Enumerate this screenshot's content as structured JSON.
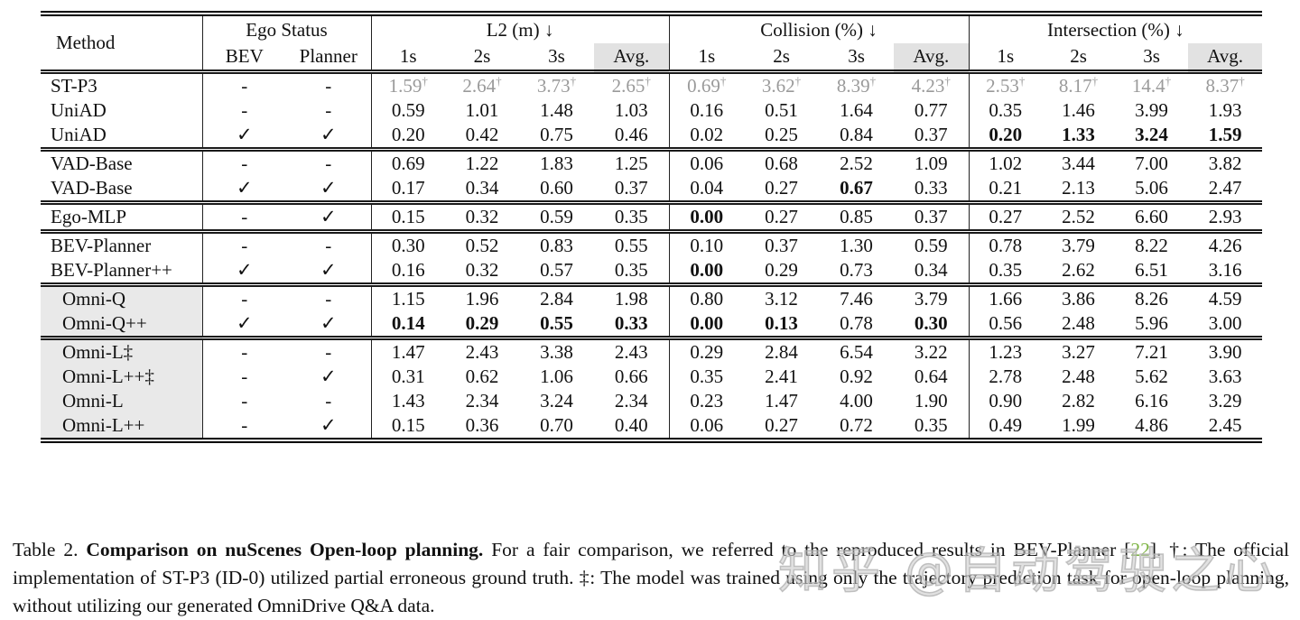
{
  "table": {
    "method_header": "Method",
    "groups": [
      {
        "label": "Ego Status",
        "sub": [
          "BEV",
          "Planner"
        ]
      },
      {
        "label": "L2 (m) ↓",
        "sub": [
          "1s",
          "2s",
          "3s",
          "Avg."
        ]
      },
      {
        "label": "Collision (%) ↓",
        "sub": [
          "1s",
          "2s",
          "3s",
          "Avg."
        ]
      },
      {
        "label": "Intersection (%) ↓",
        "sub": [
          "1s",
          "2s",
          "3s",
          "Avg."
        ]
      }
    ],
    "sections": [
      {
        "shaded": false,
        "rows": [
          {
            "method": "ST-P3",
            "bev": "-",
            "planner": "-",
            "gray": true,
            "dagger": true,
            "values": [
              "1.59",
              "2.64",
              "3.73",
              "2.65",
              "0.69",
              "3.62",
              "8.39",
              "4.23",
              "2.53",
              "8.17",
              "14.4",
              "8.37"
            ],
            "bold": []
          },
          {
            "method": "UniAD",
            "bev": "-",
            "planner": "-",
            "gray": false,
            "dagger": false,
            "values": [
              "0.59",
              "1.01",
              "1.48",
              "1.03",
              "0.16",
              "0.51",
              "1.64",
              "0.77",
              "0.35",
              "1.46",
              "3.99",
              "1.93"
            ],
            "bold": []
          },
          {
            "method": "UniAD",
            "bev": "✓",
            "planner": "✓",
            "gray": false,
            "dagger": false,
            "values": [
              "0.20",
              "0.42",
              "0.75",
              "0.46",
              "0.02",
              "0.25",
              "0.84",
              "0.37",
              "0.20",
              "1.33",
              "3.24",
              "1.59"
            ],
            "bold": [
              8,
              9,
              10,
              11
            ]
          }
        ]
      },
      {
        "shaded": false,
        "rows": [
          {
            "method": "VAD-Base",
            "bev": "-",
            "planner": "-",
            "gray": false,
            "dagger": false,
            "values": [
              "0.69",
              "1.22",
              "1.83",
              "1.25",
              "0.06",
              "0.68",
              "2.52",
              "1.09",
              "1.02",
              "3.44",
              "7.00",
              "3.82"
            ],
            "bold": []
          },
          {
            "method": "VAD-Base",
            "bev": "✓",
            "planner": "✓",
            "gray": false,
            "dagger": false,
            "values": [
              "0.17",
              "0.34",
              "0.60",
              "0.37",
              "0.04",
              "0.27",
              "0.67",
              "0.33",
              "0.21",
              "2.13",
              "5.06",
              "2.47"
            ],
            "bold": [
              6
            ]
          }
        ]
      },
      {
        "shaded": false,
        "rows": [
          {
            "method": "Ego-MLP",
            "bev": "-",
            "planner": "✓",
            "gray": false,
            "dagger": false,
            "values": [
              "0.15",
              "0.32",
              "0.59",
              "0.35",
              "0.00",
              "0.27",
              "0.85",
              "0.37",
              "0.27",
              "2.52",
              "6.60",
              "2.93"
            ],
            "bold": [
              4
            ]
          }
        ]
      },
      {
        "shaded": false,
        "rows": [
          {
            "method": "BEV-Planner",
            "bev": "-",
            "planner": "-",
            "gray": false,
            "dagger": false,
            "values": [
              "0.30",
              "0.52",
              "0.83",
              "0.55",
              "0.10",
              "0.37",
              "1.30",
              "0.59",
              "0.78",
              "3.79",
              "8.22",
              "4.26"
            ],
            "bold": []
          },
          {
            "method": "BEV-Planner++",
            "bev": "✓",
            "planner": "✓",
            "gray": false,
            "dagger": false,
            "values": [
              "0.16",
              "0.32",
              "0.57",
              "0.35",
              "0.00",
              "0.29",
              "0.73",
              "0.34",
              "0.35",
              "2.62",
              "6.51",
              "3.16"
            ],
            "bold": [
              4
            ]
          }
        ]
      },
      {
        "shaded": true,
        "rows": [
          {
            "method": "Omni-Q",
            "bev": "-",
            "planner": "-",
            "gray": false,
            "dagger": false,
            "values": [
              "1.15",
              "1.96",
              "2.84",
              "1.98",
              "0.80",
              "3.12",
              "7.46",
              "3.79",
              "1.66",
              "3.86",
              "8.26",
              "4.59"
            ],
            "bold": []
          },
          {
            "method": "Omni-Q++",
            "bev": "✓",
            "planner": "✓",
            "gray": false,
            "dagger": false,
            "values": [
              "0.14",
              "0.29",
              "0.55",
              "0.33",
              "0.00",
              "0.13",
              "0.78",
              "0.30",
              "0.56",
              "2.48",
              "5.96",
              "3.00"
            ],
            "bold": [
              0,
              1,
              2,
              3,
              4,
              5,
              7
            ]
          }
        ]
      },
      {
        "shaded": true,
        "rows": [
          {
            "method": "Omni-L‡",
            "bev": "-",
            "planner": "-",
            "gray": false,
            "dagger": false,
            "values": [
              "1.47",
              "2.43",
              "3.38",
              "2.43",
              "0.29",
              "2.84",
              "6.54",
              "3.22",
              "1.23",
              "3.27",
              "7.21",
              "3.90"
            ],
            "bold": []
          },
          {
            "method": "Omni-L++‡",
            "bev": "-",
            "planner": "✓",
            "gray": false,
            "dagger": false,
            "values": [
              "0.31",
              "0.62",
              "1.06",
              "0.66",
              "0.35",
              "2.41",
              "0.92",
              "0.64",
              "2.78",
              "2.48",
              "5.62",
              "3.63"
            ],
            "bold": []
          },
          {
            "method": "Omni-L",
            "bev": "-",
            "planner": "-",
            "gray": false,
            "dagger": false,
            "values": [
              "1.43",
              "2.34",
              "3.24",
              "2.34",
              "0.23",
              "1.47",
              "4.00",
              "1.90",
              "0.90",
              "2.82",
              "6.16",
              "3.29"
            ],
            "bold": []
          },
          {
            "method": "Omni-L++",
            "bev": "-",
            "planner": "✓",
            "gray": false,
            "dagger": false,
            "values": [
              "0.15",
              "0.36",
              "0.70",
              "0.40",
              "0.06",
              "0.27",
              "0.72",
              "0.35",
              "0.49",
              "1.99",
              "4.86",
              "2.45"
            ],
            "bold": []
          }
        ]
      }
    ]
  },
  "caption": {
    "prefix": "Table 2. ",
    "title": "Comparison on nuScenes Open-loop planning.",
    "middle": " For a fair comparison, we referred to the reproduced results in BEV-Planner [",
    "ref": "22",
    "rest": "]. †: The official implementation of ST-P3 (ID-0) utilized partial erroneous ground truth. ‡: The model was trained using only the trajectory prediction task for open-loop planning, without utilizing our generated OmniDrive Q&A data."
  },
  "watermark": {
    "text": "知乎 @自动驾驶之心"
  },
  "colors": {
    "ref_green": "#7cb342",
    "avg_header_bg": "#e2e2e2",
    "shaded_method_bg": "#e9e9e9",
    "gray_values": "#9a9a9a"
  }
}
